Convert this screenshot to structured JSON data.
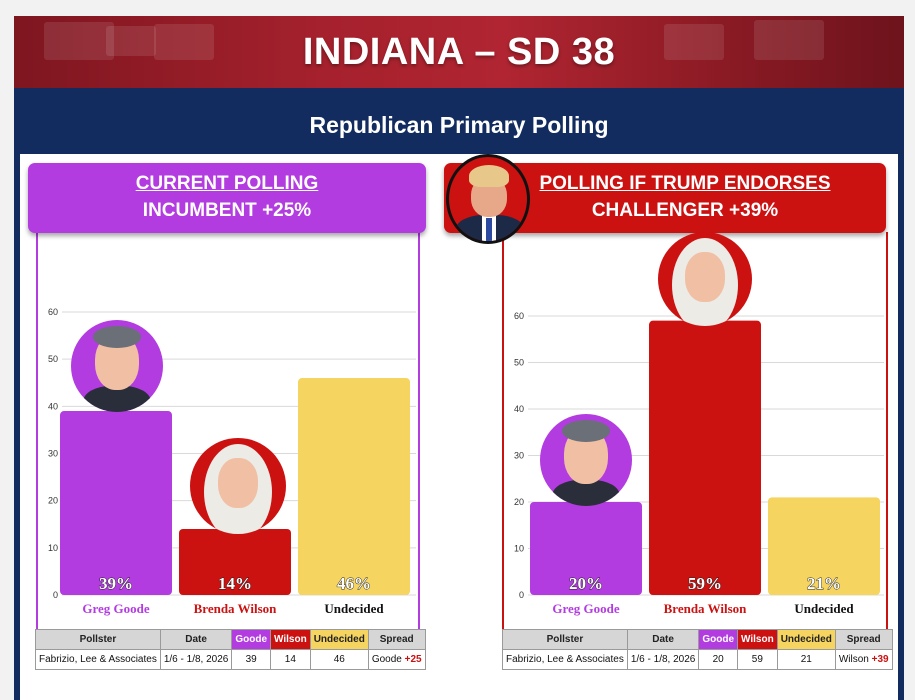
{
  "banner": {
    "title": "INDIANA – SD 38"
  },
  "subtitle": "Republican Primary Polling",
  "colors": {
    "goode": "#b23ce0",
    "wilson": "#cc1111",
    "undecided": "#f5d55f",
    "navy": "#132c5f",
    "banner": "#a5212d"
  },
  "left_panel": {
    "header_line1": "CURRENT POLLING",
    "header_line2": "INCUMBENT +25%",
    "table": {
      "headers": [
        "Pollster",
        "Date",
        "Goode",
        "Wilson",
        "Undecided",
        "Spread"
      ],
      "row": [
        "Fabrizio, Lee & Associates",
        "1/6 - 1/8, 2026",
        "39",
        "14",
        "46"
      ],
      "spread_name": "Goode",
      "spread_value": "+25"
    }
  },
  "right_panel": {
    "header_line1": "POLLING IF TRUMP ENDORSES",
    "header_line2": "CHALLENGER +39%",
    "table": {
      "headers": [
        "Pollster",
        "Date",
        "Goode",
        "Wilson",
        "Undecided",
        "Spread"
      ],
      "row": [
        "Fabrizio, Lee & Associates",
        "1/6 - 1/8, 2026",
        "20",
        "59",
        "21"
      ],
      "spread_name": "Wilson",
      "spread_value": "+39"
    }
  },
  "chart_data": [
    {
      "type": "bar",
      "title": "CURRENT POLLING",
      "categories": [
        "Greg Goode",
        "Brenda Wilson",
        "Undecided"
      ],
      "values": [
        39,
        14,
        46
      ],
      "data_labels": [
        "39%",
        "14%",
        "46%"
      ],
      "colors": [
        "#b23ce0",
        "#cc1111",
        "#f5d55f"
      ],
      "yticks": [
        0,
        10,
        20,
        30,
        40,
        50,
        60
      ],
      "ylim": [
        0,
        60
      ],
      "grid": true
    },
    {
      "type": "bar",
      "title": "POLLING IF TRUMP ENDORSES",
      "categories": [
        "Greg Goode",
        "Brenda Wilson",
        "Undecided"
      ],
      "values": [
        20,
        59,
        21
      ],
      "data_labels": [
        "20%",
        "59%",
        "21%"
      ],
      "colors": [
        "#b23ce0",
        "#cc1111",
        "#f5d55f"
      ],
      "yticks": [
        0,
        10,
        20,
        30,
        40,
        50,
        60
      ],
      "ylim": [
        0,
        60
      ],
      "grid": true
    }
  ]
}
